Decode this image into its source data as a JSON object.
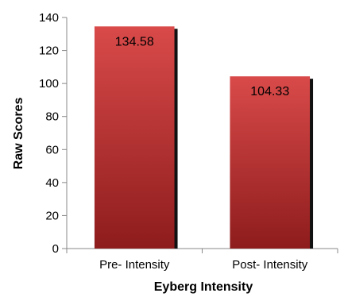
{
  "chart_data": {
    "type": "bar",
    "categories": [
      "Pre- Intensity",
      "Post- Intensity"
    ],
    "values": [
      134.58,
      104.33
    ],
    "data_labels": [
      "134.58",
      "104.33"
    ],
    "xlabel": "Eyberg Intensity",
    "ylabel": "Raw Scores",
    "ylim": [
      0,
      140
    ],
    "yticks": [
      0,
      20,
      40,
      60,
      80,
      100,
      120,
      140
    ],
    "ytick_labels": [
      "0",
      "20",
      "40",
      "60",
      "80",
      "100",
      "120",
      "140"
    ],
    "grid": false,
    "legend": "none",
    "colors": {
      "bar_top": "#d94a4a",
      "bar_bottom": "#8e1c1c",
      "bar_shadow": "#111111",
      "axis": "#888888"
    }
  }
}
